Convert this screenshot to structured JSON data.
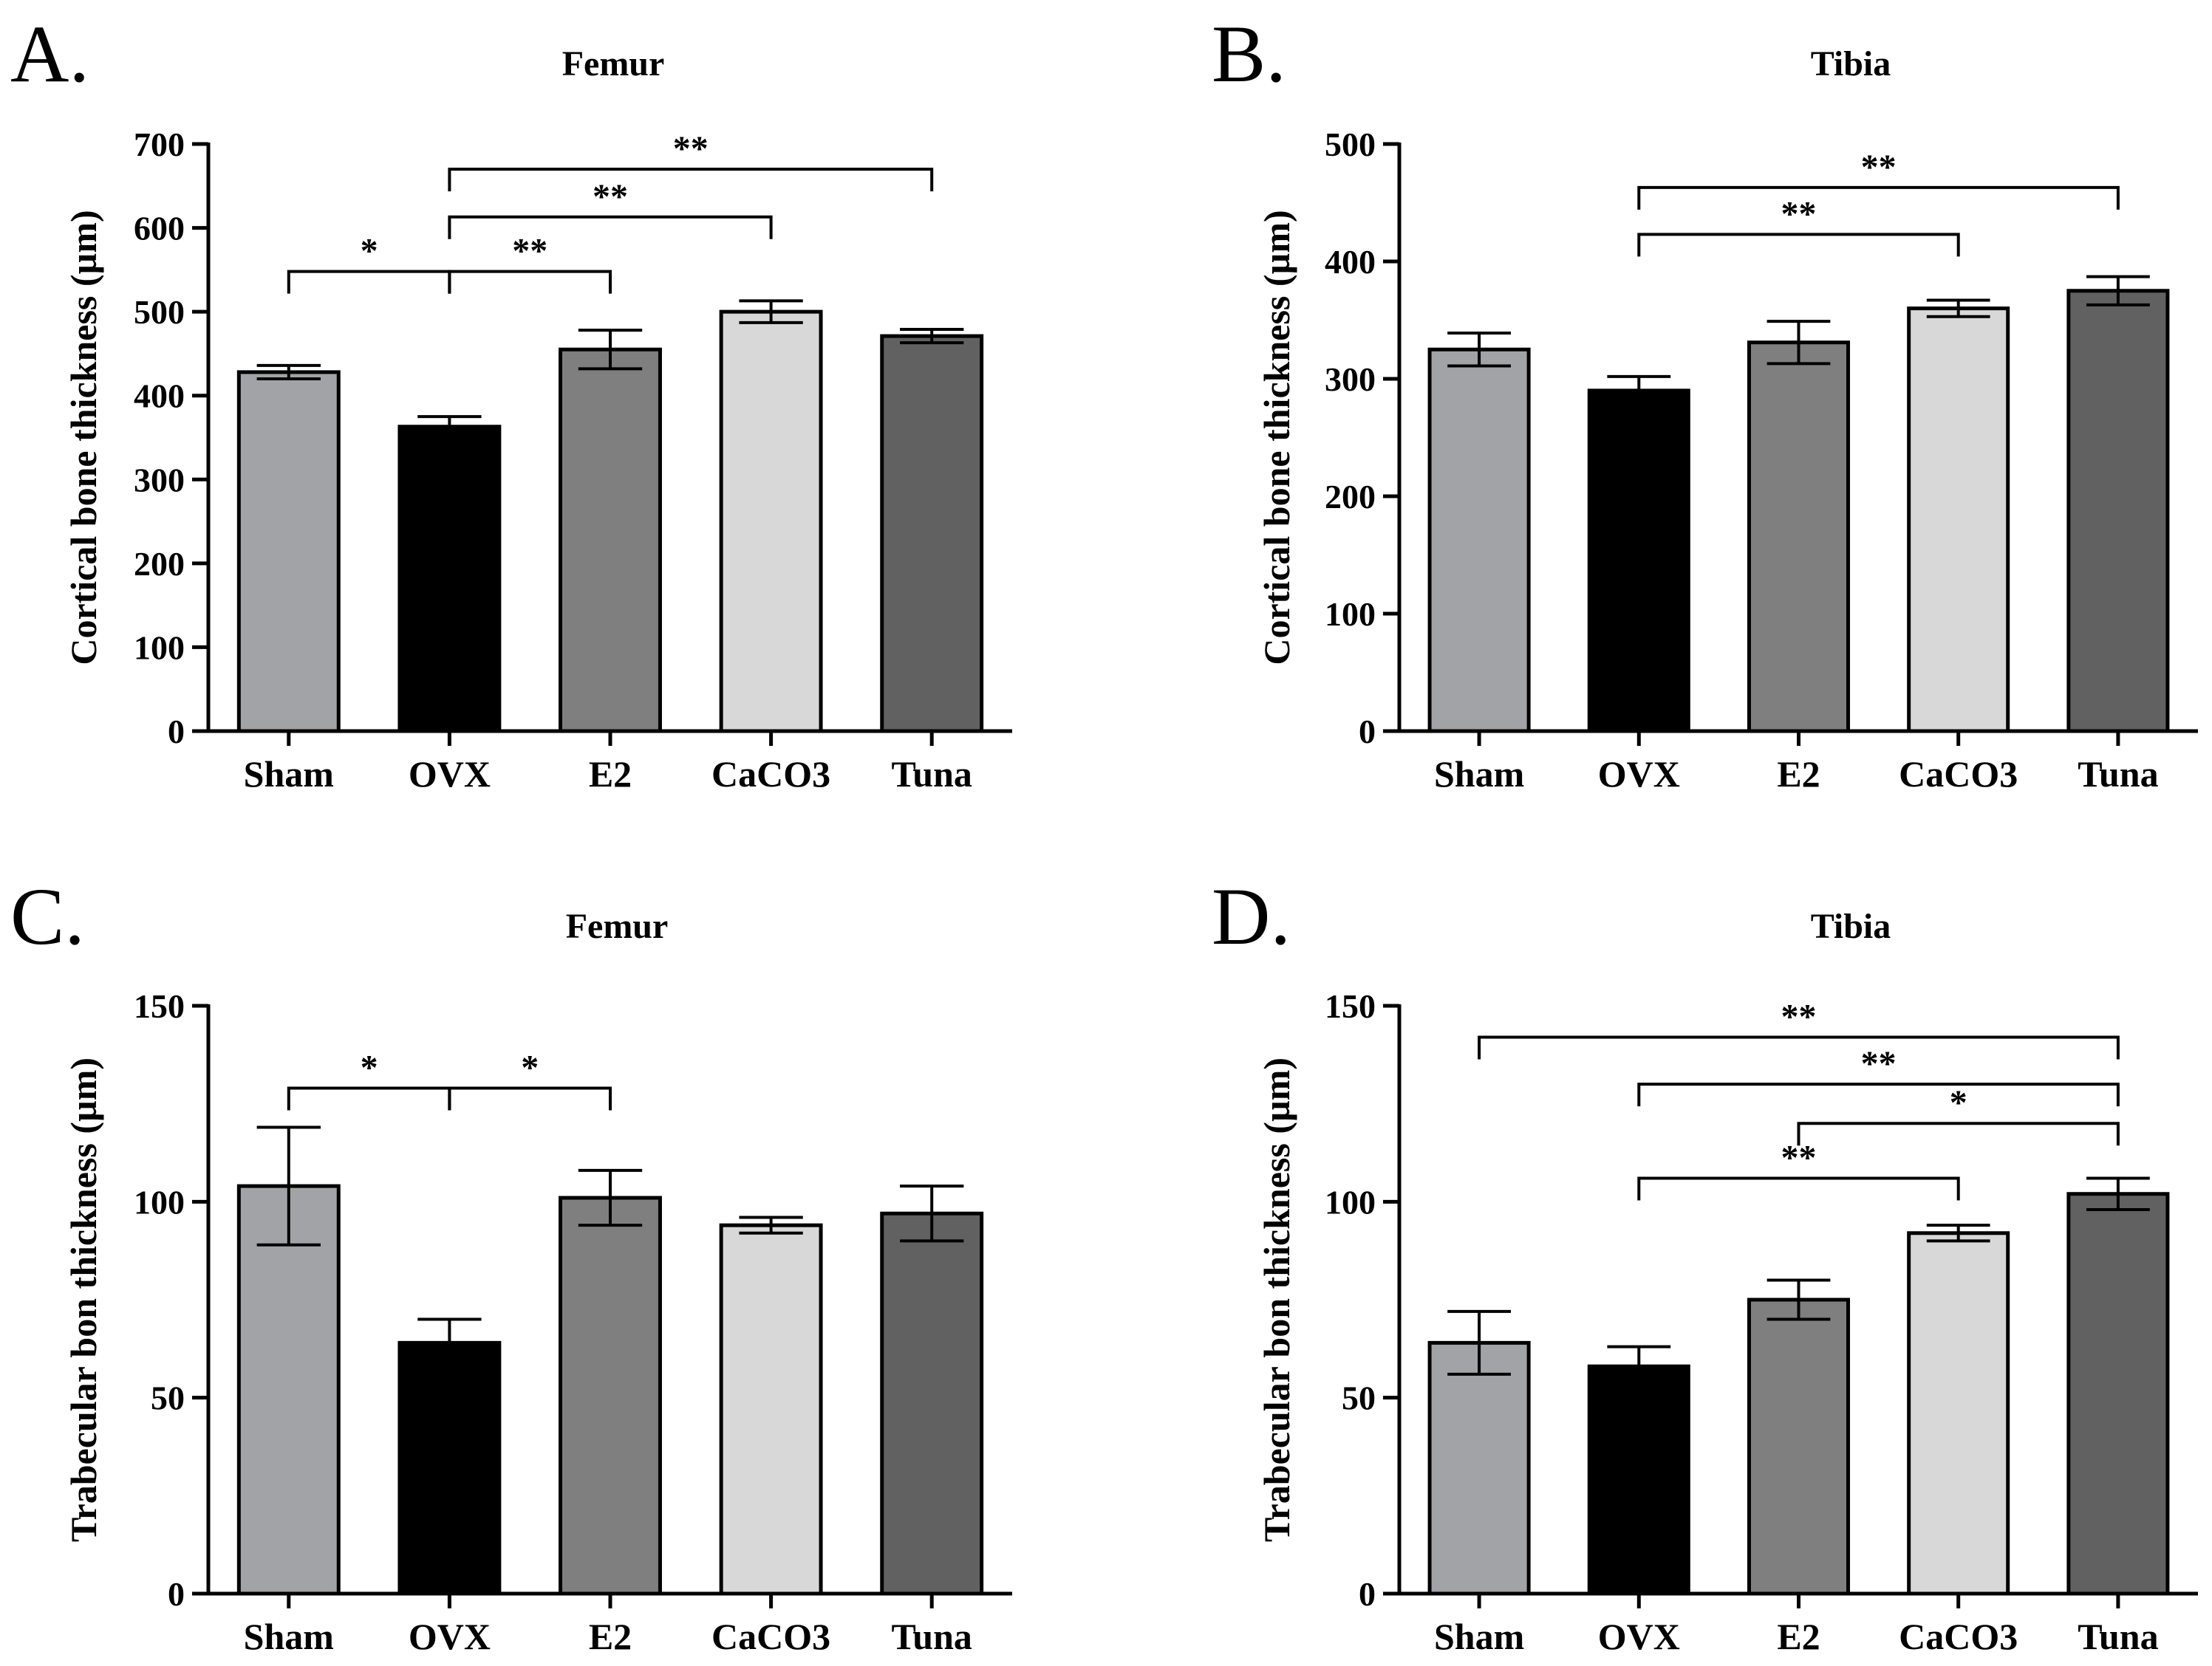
{
  "figure": {
    "panels": [
      "A.",
      "B.",
      "C.",
      "D."
    ]
  },
  "chart_data": [
    {
      "type": "bar",
      "panel": "A.",
      "title": "Femur",
      "xlabel": "",
      "ylabel": "Cortical bone thickness (µm)",
      "categories": [
        "Sham",
        "OVX",
        "E2",
        "CaCO3",
        "Tuna"
      ],
      "values": [
        428,
        363,
        455,
        500,
        471
      ],
      "errors": [
        8,
        12,
        23,
        13,
        8
      ],
      "bar_colors": [
        "#a2a3a6",
        "#000000",
        "#7f7f7f",
        "#d8d8d8",
        "#616161"
      ],
      "ylim": [
        0,
        700
      ],
      "yticks": [
        0,
        100,
        200,
        300,
        400,
        500,
        600,
        700
      ],
      "ytick_labels": [
        "0",
        "100",
        "200",
        "300",
        "400",
        "500",
        "600",
        "700"
      ],
      "significance": [
        {
          "from": "Sham",
          "to": "OVX",
          "y": 548,
          "label": "*"
        },
        {
          "from": "OVX",
          "to": "E2",
          "y": 548,
          "label": "**"
        },
        {
          "from": "OVX",
          "to": "CaCO3",
          "y": 613,
          "label": "**"
        },
        {
          "from": "OVX",
          "to": "Tuna",
          "y": 670,
          "label": "**"
        }
      ]
    },
    {
      "type": "bar",
      "panel": "B.",
      "title": "Tibia",
      "xlabel": "",
      "ylabel": "Cortical bone thickness (µm)",
      "categories": [
        "Sham",
        "OVX",
        "E2",
        "CaCO3",
        "Tuna"
      ],
      "values": [
        325,
        290,
        331,
        360,
        375
      ],
      "errors": [
        14,
        12,
        18,
        7,
        12
      ],
      "bar_colors": [
        "#a2a3a6",
        "#000000",
        "#7f7f7f",
        "#d8d8d8",
        "#616161"
      ],
      "ylim": [
        0,
        500
      ],
      "yticks": [
        0,
        100,
        200,
        300,
        400,
        500
      ],
      "ytick_labels": [
        "0",
        "100",
        "200",
        "300",
        "400",
        "500"
      ],
      "significance": [
        {
          "from": "OVX",
          "to": "CaCO3",
          "y": 423,
          "label": "**"
        },
        {
          "from": "OVX",
          "to": "Tuna",
          "y": 463,
          "label": "**"
        }
      ]
    },
    {
      "type": "bar",
      "panel": "C.",
      "title": "Femur",
      "xlabel": "",
      "ylabel": "Trabecular bon thickness (µm)",
      "categories": [
        "Sham",
        "OVX",
        "E2",
        "CaCO3",
        "Tuna"
      ],
      "values": [
        104,
        64,
        101,
        94,
        97
      ],
      "errors": [
        15,
        6,
        7,
        2,
        7
      ],
      "bar_colors": [
        "#a2a3a6",
        "#000000",
        "#7f7f7f",
        "#d8d8d8",
        "#616161"
      ],
      "ylim": [
        0,
        150
      ],
      "yticks": [
        0,
        50,
        100,
        150
      ],
      "ytick_labels": [
        "0",
        "50",
        "100",
        "150"
      ],
      "significance": [
        {
          "from": "Sham",
          "to": "OVX",
          "y": 129,
          "label": "*"
        },
        {
          "from": "OVX",
          "to": "E2",
          "y": 129,
          "label": "*"
        }
      ]
    },
    {
      "type": "bar",
      "panel": "D.",
      "title": "Tibia",
      "xlabel": "",
      "ylabel": "Trabecular bon thickness (µm)",
      "categories": [
        "Sham",
        "OVX",
        "E2",
        "CaCO3",
        "Tuna"
      ],
      "values": [
        64,
        58,
        75,
        92,
        102
      ],
      "errors": [
        8,
        5,
        5,
        2,
        4
      ],
      "bar_colors": [
        "#a2a3a6",
        "#000000",
        "#7f7f7f",
        "#d8d8d8",
        "#616161"
      ],
      "ylim": [
        0,
        150
      ],
      "yticks": [
        0,
        50,
        100,
        150
      ],
      "ytick_labels": [
        "0",
        "50",
        "100",
        "150"
      ],
      "significance": [
        {
          "from": "OVX",
          "to": "CaCO3",
          "y": 106,
          "label": "**"
        },
        {
          "from": "E2",
          "to": "Tuna",
          "y": 120,
          "label": "*"
        },
        {
          "from": "OVX",
          "to": "Tuna",
          "y": 130,
          "label": "**"
        },
        {
          "from": "Sham",
          "to": "Tuna",
          "y": 142,
          "label": "**"
        }
      ]
    }
  ]
}
